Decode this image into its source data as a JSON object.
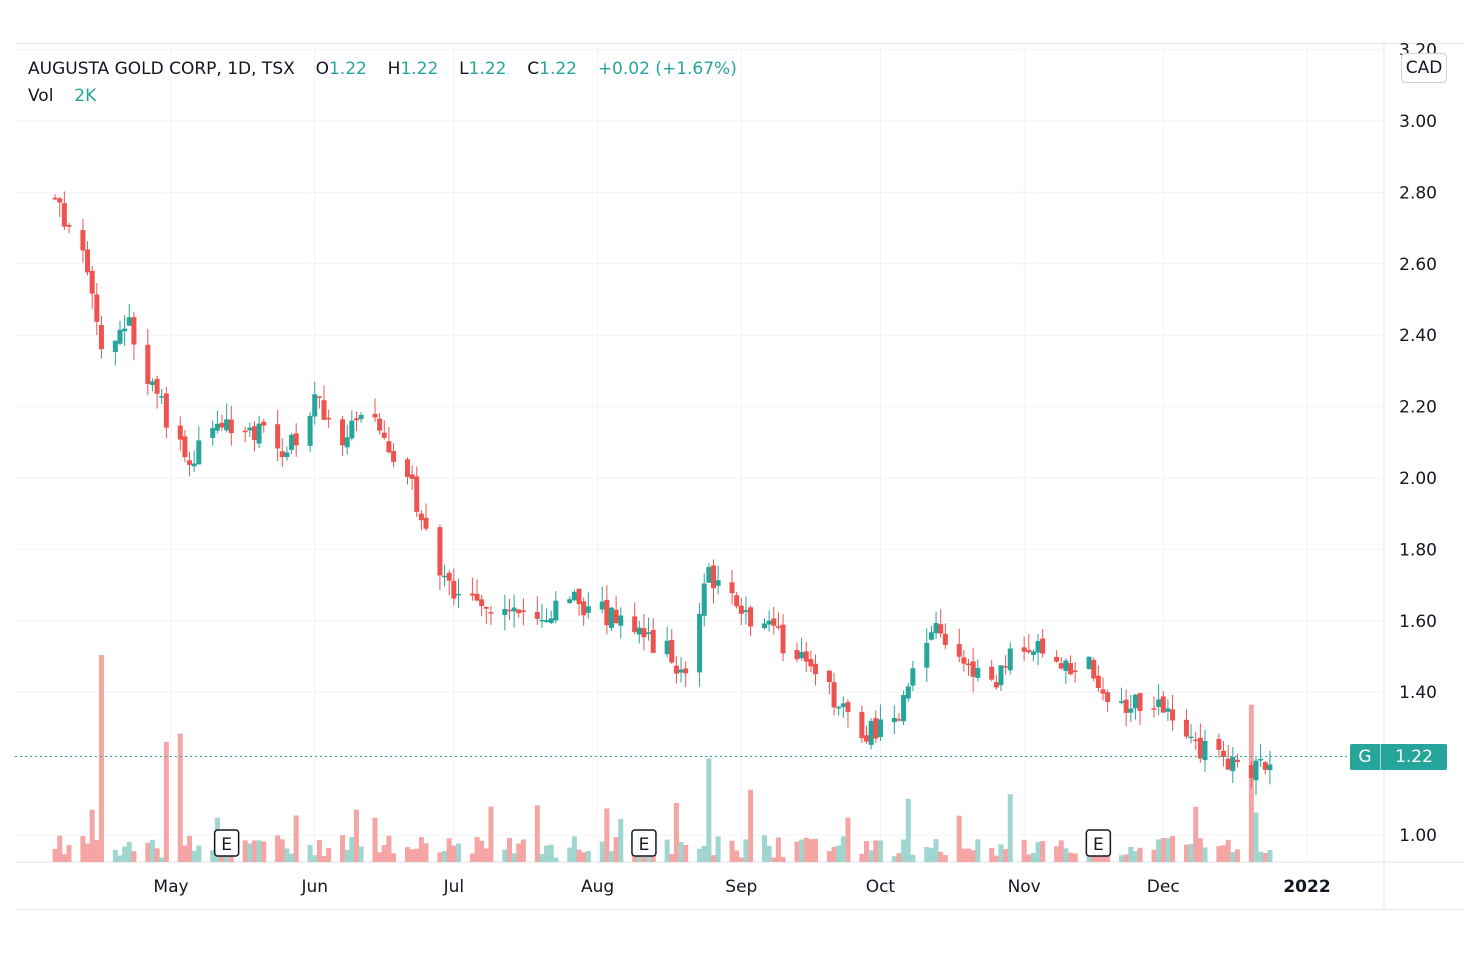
{
  "legend": {
    "symbol_line": "AUGUSTA GOLD CORP, 1D, TSX",
    "open_label": "O",
    "open": "1.22",
    "high_label": "H",
    "high": "1.22",
    "low_label": "L",
    "low": "1.22",
    "close_label": "C",
    "close": "1.22",
    "change": "+0.02 (+1.67%)",
    "volume_label": "Vol",
    "volume": "2K"
  },
  "currency_button": "CAD",
  "last_price_tag": {
    "symbol": "G",
    "price": "1.22"
  },
  "earnings_marker": "E",
  "colors": {
    "up": "#26a69a",
    "down": "#ef5350",
    "up_volume": "#9fd6cf",
    "down_volume": "#f5a5a4",
    "grid": "#f0f3fa"
  },
  "chart_data": {
    "type": "candlestick",
    "title": "",
    "xlabel": "",
    "ylabel": "",
    "ylim": [
      0.92,
      3.2
    ],
    "y_ticks": [
      "3.20",
      "3.00",
      "2.80",
      "2.60",
      "2.40",
      "2.20",
      "2.00",
      "1.80",
      "1.60",
      "1.40",
      "1.22",
      "1.00"
    ],
    "x_ticks": [
      "May",
      "Jun",
      "Jul",
      "Aug",
      "Sep",
      "Oct",
      "Nov",
      "Dec",
      "2022"
    ],
    "grid": true,
    "last_price": 1.22,
    "earnings_markers": [
      "May",
      "Aug",
      "Nov"
    ],
    "series": [
      {
        "name": "Price",
        "anchors": [
          [
            "2021-04-06",
            2.78
          ],
          [
            "2021-04-12",
            2.62
          ],
          [
            "2021-04-16",
            2.38
          ],
          [
            "2021-04-22",
            2.44
          ],
          [
            "2021-04-27",
            2.26
          ],
          [
            "2021-05-04",
            2.05
          ],
          [
            "2021-05-11",
            2.13
          ],
          [
            "2021-05-18",
            2.14
          ],
          [
            "2021-05-26",
            2.07
          ],
          [
            "2021-06-01",
            2.22
          ],
          [
            "2021-06-07",
            2.12
          ],
          [
            "2021-06-14",
            2.16
          ],
          [
            "2021-06-21",
            2.02
          ],
          [
            "2021-06-28",
            1.74
          ],
          [
            "2021-07-01",
            1.68
          ],
          [
            "2021-07-12",
            1.64
          ],
          [
            "2021-07-20",
            1.61
          ],
          [
            "2021-07-27",
            1.66
          ],
          [
            "2021-08-02",
            1.62
          ],
          [
            "2021-08-09",
            1.56
          ],
          [
            "2021-08-16",
            1.52
          ],
          [
            "2021-08-20",
            1.42
          ],
          [
            "2021-08-25",
            1.74
          ],
          [
            "2021-08-30",
            1.65
          ],
          [
            "2021-09-07",
            1.58
          ],
          [
            "2021-09-14",
            1.48
          ],
          [
            "2021-09-20",
            1.4
          ],
          [
            "2021-09-27",
            1.28
          ],
          [
            "2021-10-01",
            1.3
          ],
          [
            "2021-10-06",
            1.36
          ],
          [
            "2021-10-12",
            1.6
          ],
          [
            "2021-10-18",
            1.5
          ],
          [
            "2021-10-25",
            1.42
          ],
          [
            "2021-11-01",
            1.54
          ],
          [
            "2021-11-08",
            1.49
          ],
          [
            "2021-11-15",
            1.47
          ],
          [
            "2021-11-22",
            1.35
          ],
          [
            "2021-11-29",
            1.38
          ],
          [
            "2021-12-06",
            1.27
          ],
          [
            "2021-12-13",
            1.21
          ],
          [
            "2021-12-20",
            1.18
          ],
          [
            "2021-12-24",
            1.22
          ]
        ]
      },
      {
        "name": "Volume",
        "max": 1.0,
        "spikes": [
          [
            "2021-04-16",
            1.0
          ],
          [
            "2021-04-30",
            0.58
          ],
          [
            "2021-05-03",
            0.62
          ],
          [
            "2021-08-25",
            0.5
          ],
          [
            "2021-12-20",
            0.76
          ]
        ]
      }
    ]
  }
}
